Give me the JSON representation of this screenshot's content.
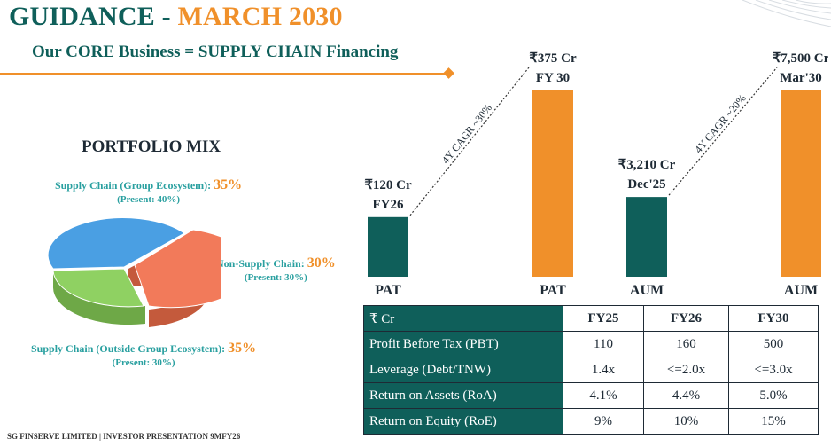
{
  "title": {
    "part1": "GUIDANCE - ",
    "part2": "MARCH 2030"
  },
  "subtitle": "Our CORE Business = SUPPLY CHAIN Financing",
  "portfolio": {
    "title": "PORTFOLIO MIX",
    "segments": [
      {
        "label": "Supply Chain (Group Ecosystem):",
        "pct": "35%",
        "present": "(Present: 40%)",
        "value": 35,
        "color": "#4a9fe3"
      },
      {
        "label": "Non-Supply Chain:",
        "pct": "30%",
        "present": "(Present: 30%)",
        "value": 30,
        "color": "#f27a5a"
      },
      {
        "label": "Supply Chain (Outside Group Ecosystem):",
        "pct": "35%",
        "present": "(Present: 30%)",
        "value": 35,
        "color": "#8fd162"
      }
    ]
  },
  "chart_data": {
    "type": "bar",
    "colors": {
      "current": "#0f5f5a",
      "target": "#f0902a"
    },
    "groups": [
      {
        "metric": "PAT",
        "unit": "₹ Cr",
        "cagr_label": "4Y CAGR ~30%",
        "bars": [
          {
            "category": "PAT",
            "value": 120,
            "value_label": "₹120 Cr",
            "period": "FY26"
          },
          {
            "category": "PAT",
            "value": 375,
            "value_label": "₹375 Cr",
            "period": "FY 30"
          }
        ]
      },
      {
        "metric": "AUM",
        "unit": "₹ Cr",
        "cagr_label": "4Y CAGR ~20%",
        "bars": [
          {
            "category": "AUM",
            "value": 3210,
            "value_label": "₹3,210 Cr",
            "period": "Dec'25"
          },
          {
            "category": "AUM",
            "value": 7500,
            "value_label": "₹7,500 Cr",
            "period": "Mar'30"
          }
        ]
      }
    ]
  },
  "table": {
    "header": [
      "₹ Cr",
      "FY25",
      "FY26",
      "FY30"
    ],
    "rows": [
      [
        "Profit Before Tax (PBT)",
        "110",
        "160",
        "500"
      ],
      [
        "Leverage (Debt/TNW)",
        "1.4x",
        "<=2.0x",
        "<=3.0x"
      ],
      [
        "Return on Assets (RoA)",
        "4.1%",
        "4.4%",
        "5.0%"
      ],
      [
        "Return on Equity (RoE)",
        "9%",
        "10%",
        "15%"
      ]
    ]
  },
  "footer": "SG FINSERVE LIMITED | INVESTOR PRESENTATION 9MFY26"
}
